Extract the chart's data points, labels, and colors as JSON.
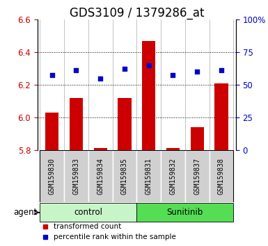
{
  "title": "GDS3109 / 1379286_at",
  "samples": [
    "GSM159830",
    "GSM159833",
    "GSM159834",
    "GSM159835",
    "GSM159831",
    "GSM159832",
    "GSM159837",
    "GSM159838"
  ],
  "red_values": [
    6.03,
    6.12,
    5.81,
    6.12,
    6.47,
    5.81,
    5.94,
    6.21
  ],
  "blue_values": [
    6.26,
    6.29,
    6.24,
    6.3,
    6.32,
    6.26,
    6.28,
    6.29
  ],
  "red_base": 5.8,
  "ylim_left": [
    5.8,
    6.6
  ],
  "yticks_left": [
    5.8,
    6.0,
    6.2,
    6.4,
    6.6
  ],
  "ylim_right": [
    0,
    100
  ],
  "yticks_right": [
    0,
    25,
    50,
    75,
    100
  ],
  "ytick_labels_right": [
    "0",
    "25",
    "50",
    "75",
    "100%"
  ],
  "control_color": "#c8f5c8",
  "sunitinib_color": "#55dd55",
  "sample_box_color": "#d0d0d0",
  "bar_color": "#cc0000",
  "dot_color": "#0000cc",
  "grid_dotted_levels": [
    6.0,
    6.2,
    6.4
  ],
  "legend_red": "transformed count",
  "legend_blue": "percentile rank within the sample",
  "title_fontsize": 12,
  "tick_fontsize": 8.5,
  "background_color": "#ffffff"
}
